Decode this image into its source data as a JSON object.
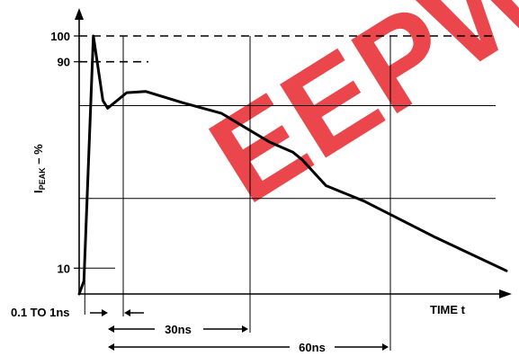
{
  "chart_data": {
    "type": "line",
    "title": "",
    "ylabel": {
      "main": "I",
      "subscript": "PEAK",
      "suffix": " – %"
    },
    "xlabel": "TIME t",
    "y_ticks": [
      {
        "value": 100,
        "label": "100"
      },
      {
        "value": 90,
        "label": "90"
      },
      {
        "value": 10,
        "label": "10"
      }
    ],
    "ylim": [
      0,
      110
    ],
    "xlim": [
      0,
      90
    ],
    "grid": {
      "horizontal_values": [
        100,
        90,
        73,
        37,
        10
      ],
      "vertical_values": [
        1,
        30,
        60
      ]
    },
    "series": [
      {
        "values": [
          {
            "x": 0,
            "y": 0
          },
          {
            "x": 1,
            "y": 5
          },
          {
            "x": 3,
            "y": 100
          },
          {
            "x": 5,
            "y": 75
          },
          {
            "x": 6,
            "y": 72
          },
          {
            "x": 10,
            "y": 78
          },
          {
            "x": 14,
            "y": 78.5
          },
          {
            "x": 22,
            "y": 74
          },
          {
            "x": 30,
            "y": 70
          },
          {
            "x": 40,
            "y": 59
          },
          {
            "x": 45,
            "y": 55
          },
          {
            "x": 47,
            "y": 52
          },
          {
            "x": 52,
            "y": 42
          },
          {
            "x": 60,
            "y": 36
          },
          {
            "x": 75,
            "y": 22
          },
          {
            "x": 90,
            "y": 9
          }
        ]
      }
    ],
    "annotations": [
      {
        "text": "0.1 TO 1ns"
      },
      {
        "text": "30ns"
      },
      {
        "text": "60ns"
      }
    ]
  },
  "watermark": {
    "text": "EEPW",
    "color": "#e8262c"
  }
}
